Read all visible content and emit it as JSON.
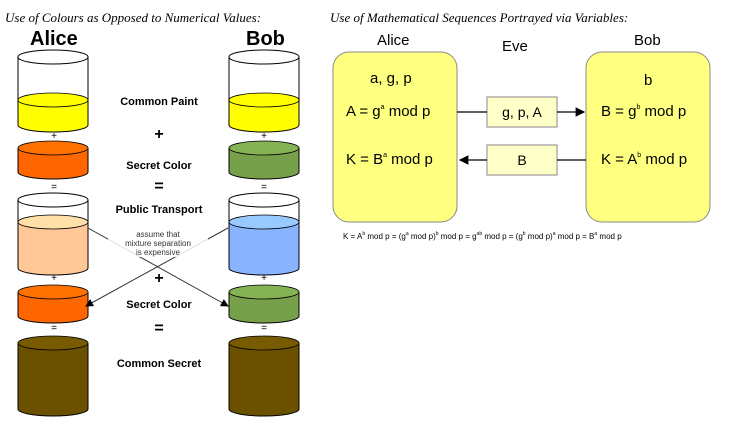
{
  "headers": {
    "left": "Use of Colours as Opposed to Numerical Values:",
    "right": "Use of Mathematical Sequences Portrayed via Variables:"
  },
  "left_panel": {
    "alice": "Alice",
    "bob": "Bob",
    "common_paint": "Common Paint",
    "secret_color_1": "Secret Color",
    "public_transport": "Public Transport",
    "note_line1": "assume that",
    "note_line2": "mixture separation",
    "note_line3": "is expensive",
    "secret_color_2": "Secret Color",
    "common_secret": "Common Secret",
    "plus": "+",
    "equals": "="
  },
  "right_panel": {
    "alice": "Alice",
    "eve": "Eve",
    "bob": "Bob",
    "alice_params": "a, g, p",
    "alice_A_lhs": "A = g",
    "alice_A_exp": "a",
    "alice_A_rhs": " mod p",
    "alice_K_lhs": "K = B",
    "alice_K_exp": "a",
    "alice_K_rhs": " mod p",
    "bob_param": "b",
    "bob_B_lhs": "B = g",
    "bob_B_exp": "b",
    "bob_B_rhs": " mod p",
    "bob_K_lhs": "K = A",
    "bob_K_exp": "b",
    "bob_K_rhs": " mod p",
    "msg_to_bob": "g, p, A",
    "msg_to_alice": "B",
    "formula": "K = A^b mod p = (g^a mod p)^b mod p = g^ab mod p = (g^b mod p)^a mod p = B^a mod p"
  },
  "colors": {
    "common_paint": "#ffff00",
    "alice_secret": "#ff6600",
    "bob_secret": "#77a04a",
    "alice_mix": "#ffc896",
    "bob_mix": "#88b4ff",
    "common_secret": "#6b5000",
    "box_fill": "#ffff80",
    "msg_fill": "#ffffc8"
  }
}
